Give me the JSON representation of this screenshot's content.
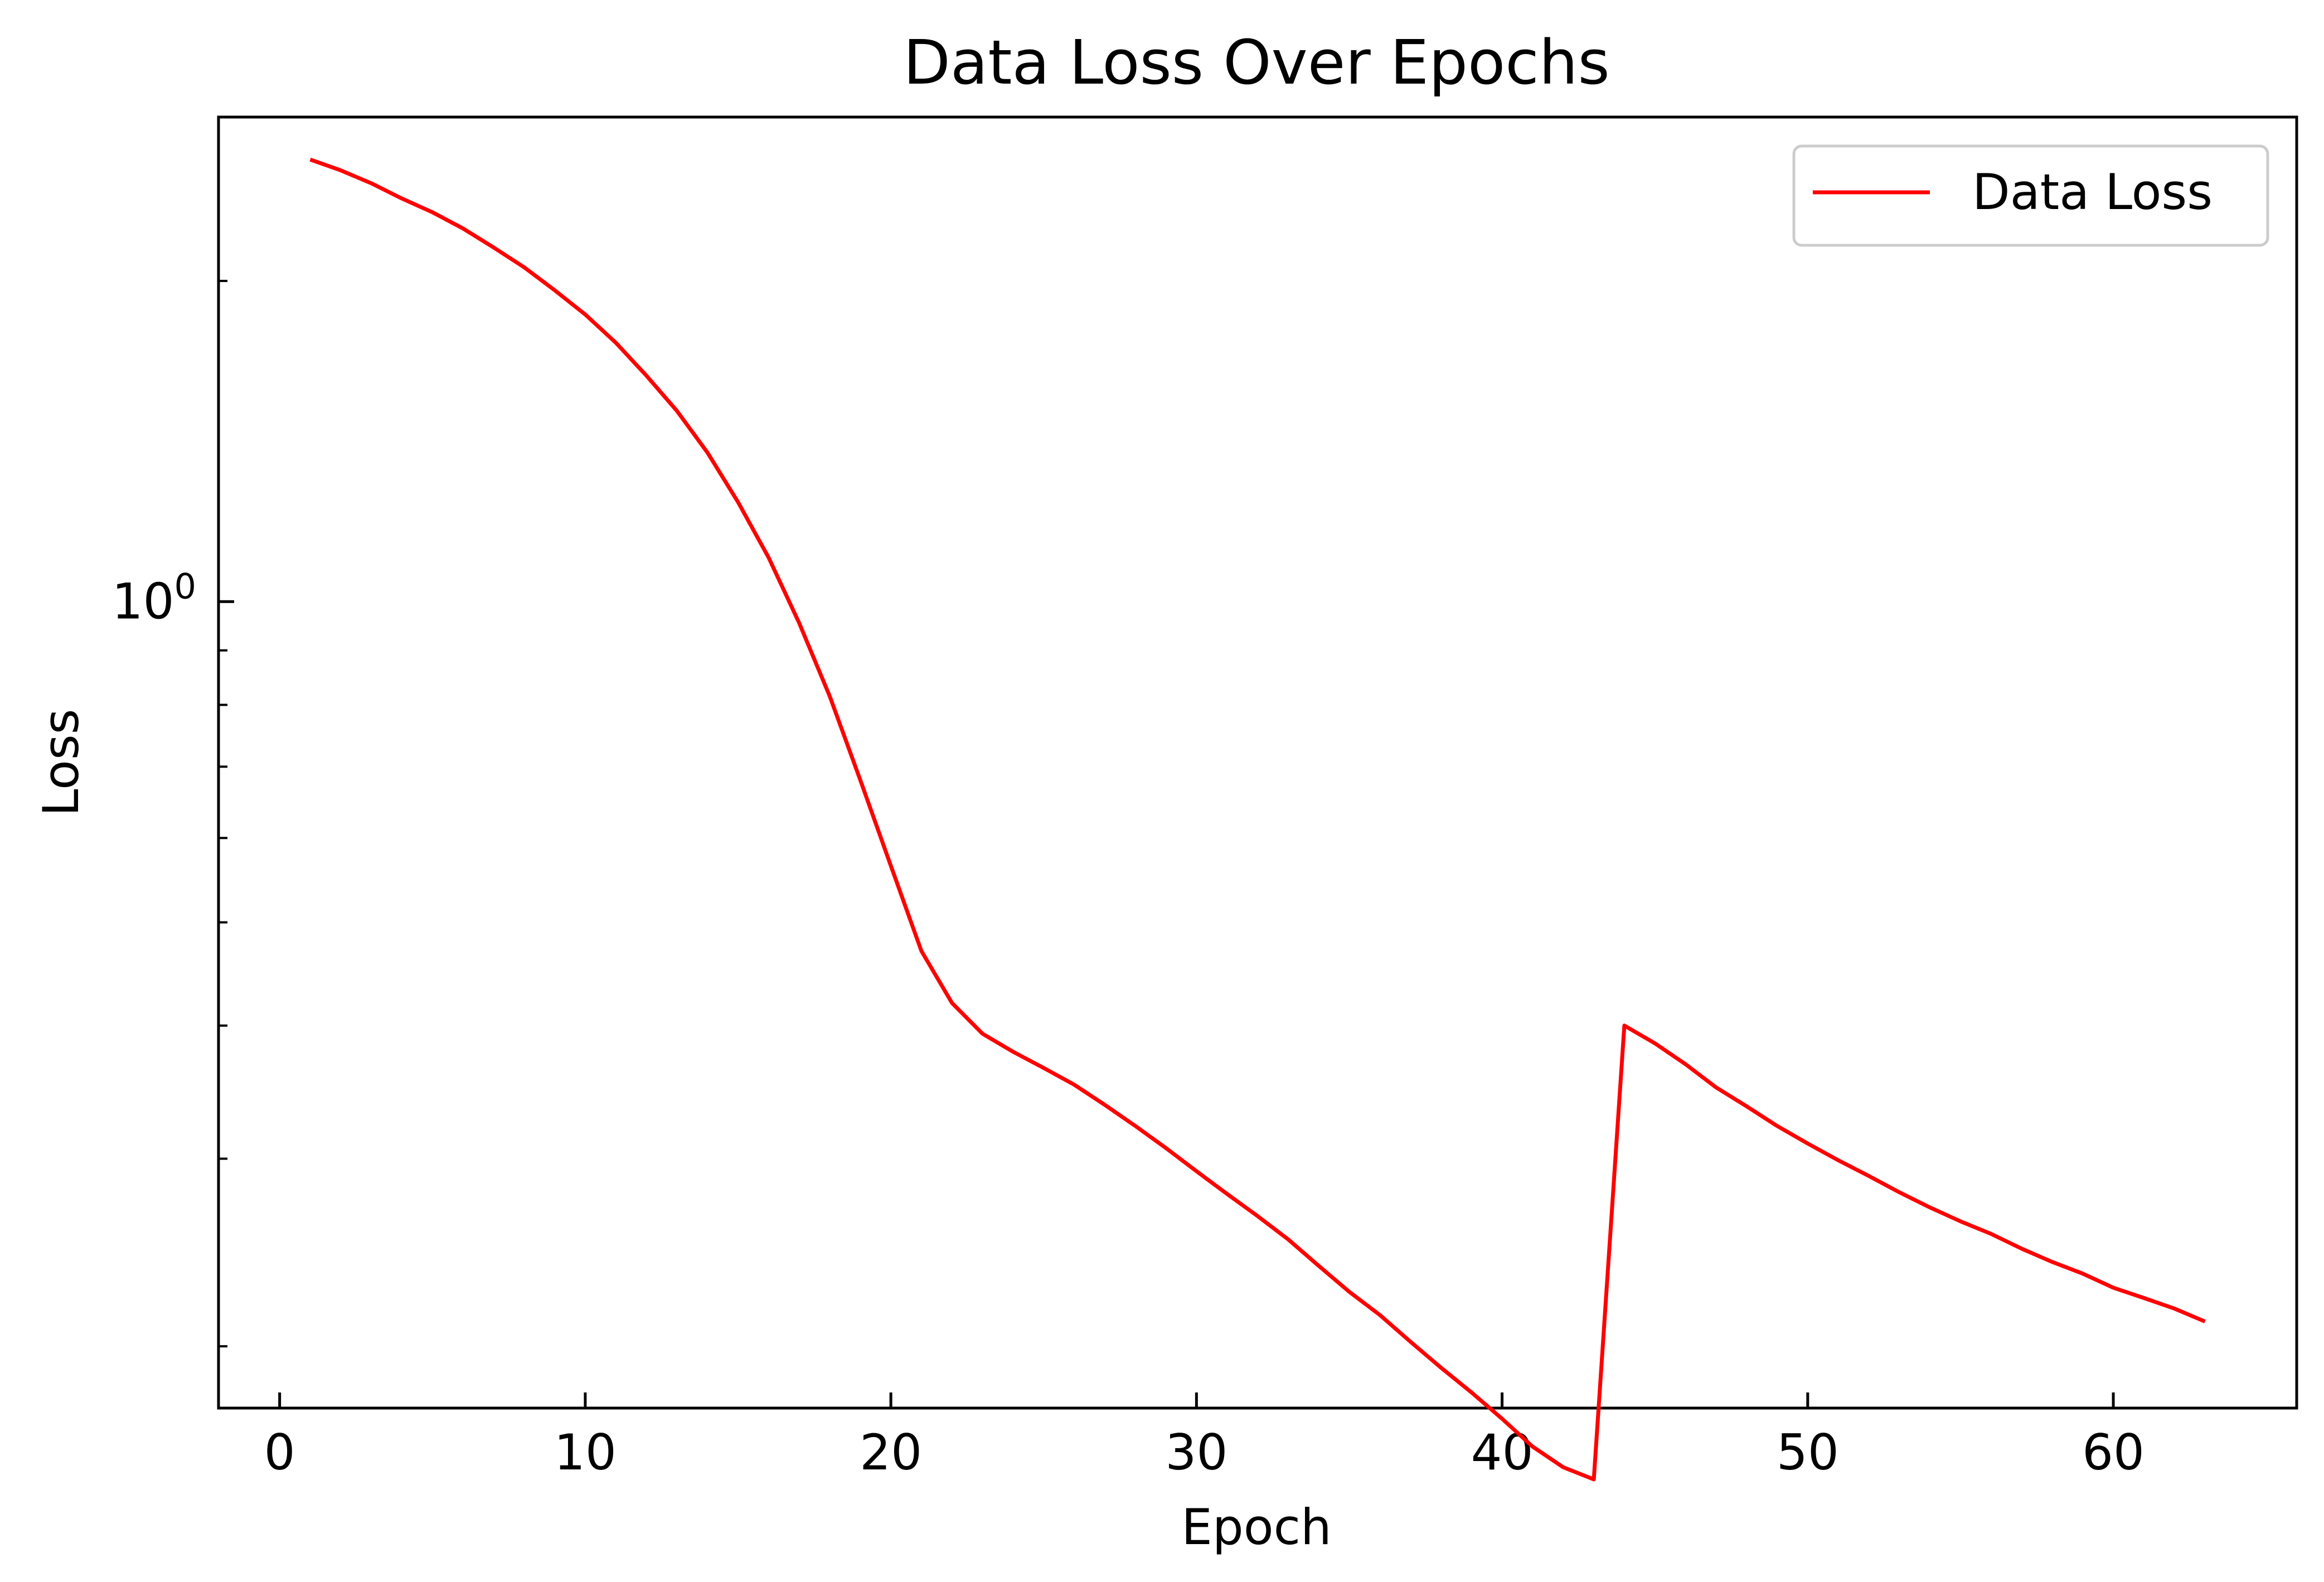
{
  "colors": {
    "series": "#ff0000",
    "axis": "#000000",
    "background": "#ffffff",
    "legend_border": "#cccccc"
  },
  "chart_data": {
    "type": "line",
    "title": "Data Loss Over Epochs",
    "xlabel": "Epoch",
    "ylabel": "Loss",
    "xscale": "linear",
    "yscale": "log",
    "xlim": [
      -2,
      66
    ],
    "ylim": [
      0.175,
      2.85
    ],
    "xticks": [
      0,
      10,
      20,
      30,
      40,
      50,
      60
    ],
    "yticks_major": [
      {
        "value": 1,
        "base": "10",
        "exponent": "0"
      }
    ],
    "yticks_minor": [
      0.2,
      0.3,
      0.4,
      0.5,
      0.6,
      0.7,
      0.8,
      0.9,
      2
    ],
    "tick_direction": "in",
    "grid": false,
    "legend": "top-right",
    "series": [
      {
        "name": "Data Loss",
        "x": [
          1,
          2,
          3,
          4,
          5,
          6,
          7,
          8,
          9,
          10,
          11,
          12,
          13,
          14,
          15,
          16,
          17,
          18,
          19,
          20,
          21,
          22,
          23,
          24,
          25,
          26,
          27,
          28,
          29,
          30,
          31,
          32,
          33,
          34,
          35,
          36,
          37,
          38,
          39,
          40,
          41,
          42,
          43,
          44,
          45,
          46,
          47,
          48,
          49,
          50,
          51,
          52,
          53,
          54,
          55,
          56,
          57,
          58,
          59,
          60,
          61,
          62,
          63
        ],
        "values": [
          2.6,
          2.54,
          2.47,
          2.39,
          2.32,
          2.24,
          2.15,
          2.06,
          1.96,
          1.86,
          1.75,
          1.63,
          1.51,
          1.38,
          1.24,
          1.1,
          0.955,
          0.815,
          0.68,
          0.565,
          0.47,
          0.42,
          0.393,
          0.378,
          0.365,
          0.352,
          0.337,
          0.322,
          0.307,
          0.292,
          0.278,
          0.265,
          0.252,
          0.238,
          0.225,
          0.214,
          0.202,
          0.191,
          0.181,
          0.171,
          0.161,
          0.154,
          0.15,
          0.4,
          0.385,
          0.368,
          0.35,
          0.336,
          0.322,
          0.31,
          0.299,
          0.289,
          0.279,
          0.27,
          0.262,
          0.255,
          0.247,
          0.24,
          0.234,
          0.227,
          0.222,
          0.217,
          0.211
        ]
      }
    ]
  }
}
